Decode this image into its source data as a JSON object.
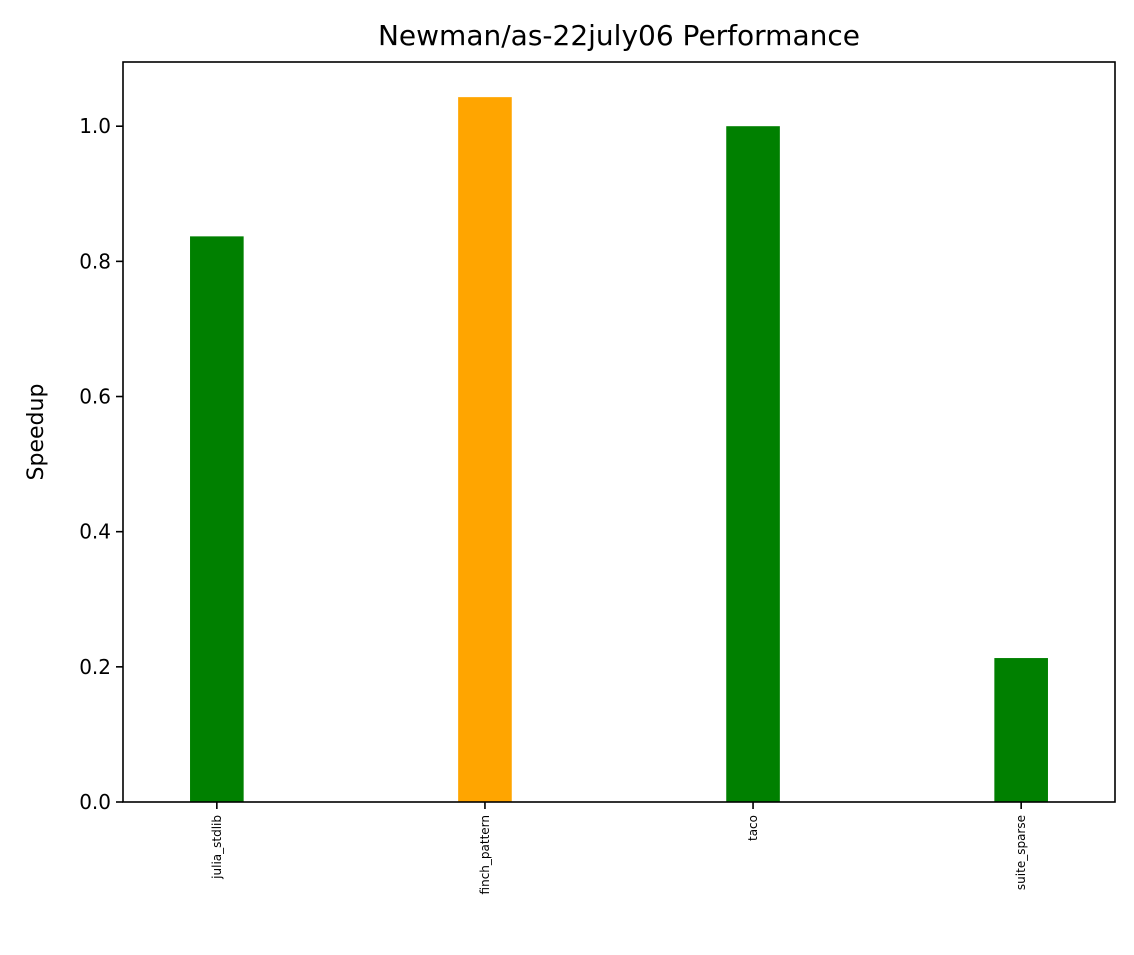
{
  "chart_data": {
    "type": "bar",
    "title": "Newman/as-22july06 Performance",
    "xlabel": "",
    "ylabel": "Speedup",
    "categories": [
      "julia_stdlib",
      "finch_pattern",
      "taco",
      "suite_sparse"
    ],
    "values": [
      0.837,
      1.043,
      1.0,
      0.213
    ],
    "colors": [
      "#008000",
      "#FFA500",
      "#008000",
      "#008000"
    ],
    "ylim": [
      0,
      1.095
    ],
    "yticks": [
      0.0,
      0.2,
      0.4,
      0.6,
      0.8,
      1.0
    ],
    "ytick_labels": [
      "0.0",
      "0.2",
      "0.4",
      "0.6",
      "0.8",
      "1.0"
    ],
    "grid": false,
    "legend": "none"
  }
}
